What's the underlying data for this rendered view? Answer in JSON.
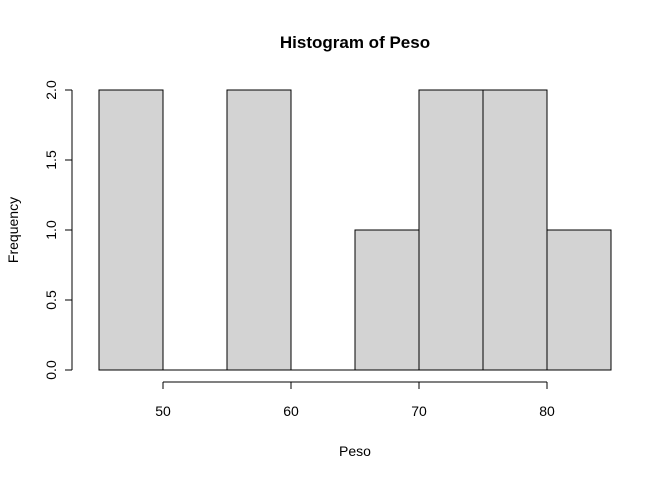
{
  "chart_data": {
    "type": "bar",
    "title": "Histogram of Peso",
    "xlabel": "Peso",
    "ylabel": "Frequency",
    "bins": [
      {
        "x0": 45,
        "x1": 50,
        "count": 2
      },
      {
        "x0": 50,
        "x1": 55,
        "count": 0
      },
      {
        "x0": 55,
        "x1": 60,
        "count": 2
      },
      {
        "x0": 60,
        "x1": 65,
        "count": 0
      },
      {
        "x0": 65,
        "x1": 70,
        "count": 1
      },
      {
        "x0": 70,
        "x1": 75,
        "count": 2
      },
      {
        "x0": 75,
        "x1": 80,
        "count": 2
      },
      {
        "x0": 80,
        "x1": 85,
        "count": 1
      }
    ],
    "xlim": [
      45,
      85
    ],
    "ylim": [
      0,
      2
    ],
    "x_ticks": [
      50,
      60,
      70,
      80
    ],
    "y_ticks": [
      0.0,
      0.5,
      1.0,
      1.5,
      2.0
    ],
    "y_tick_labels": [
      "0.0",
      "0.5",
      "1.0",
      "1.5",
      "2.0"
    ],
    "bar_fill": "#d3d3d3",
    "bar_stroke": "#000000",
    "grid": false
  }
}
